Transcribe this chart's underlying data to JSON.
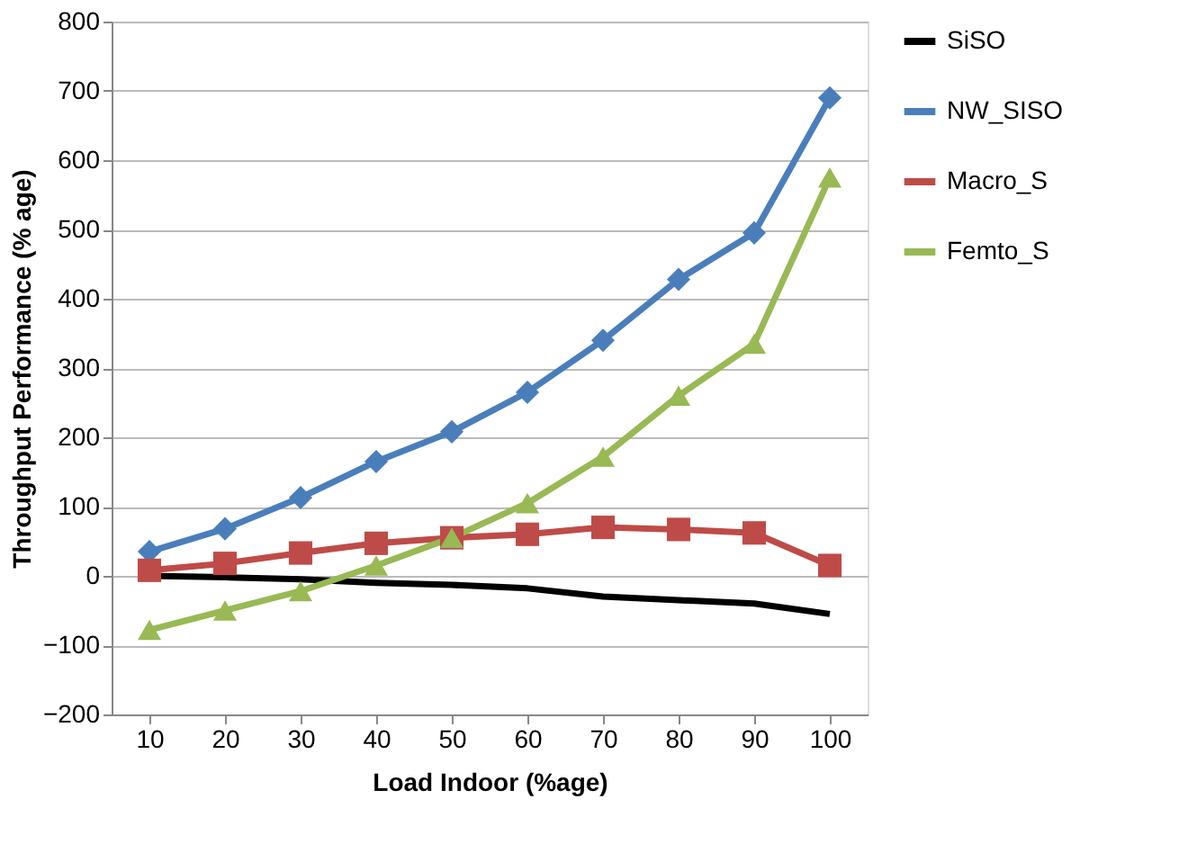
{
  "chart_data": {
    "type": "line",
    "xlabel": "Load Indoor (%age)",
    "ylabel": "Throughput Performance (% age)",
    "categories": [
      "10",
      "20",
      "30",
      "40",
      "50",
      "60",
      "70",
      "80",
      "90",
      "100"
    ],
    "series": [
      {
        "name": "SiSO",
        "color": "#000000",
        "marker": "none",
        "values": [
          0,
          -2,
          -5,
          -10,
          -13,
          -18,
          -30,
          -35,
          -40,
          -55
        ]
      },
      {
        "name": "NW_SISO",
        "color": "#4a7ebb",
        "marker": "diamond",
        "values": [
          35,
          68,
          113,
          165,
          208,
          265,
          340,
          428,
          495,
          690
        ]
      },
      {
        "name": "Macro_S",
        "color": "#be4b48",
        "marker": "square",
        "values": [
          8,
          18,
          33,
          47,
          55,
          60,
          70,
          67,
          62,
          15
        ]
      },
      {
        "name": "Femto_S",
        "color": "#98b954",
        "marker": "triangle",
        "values": [
          -78,
          -50,
          -22,
          15,
          55,
          105,
          172,
          260,
          335,
          575
        ]
      }
    ],
    "ylim": [
      -200,
      800
    ],
    "yticks": [
      -200,
      -100,
      0,
      100,
      200,
      300,
      400,
      500,
      600,
      700,
      800
    ],
    "grid": "y",
    "legend": "right",
    "line_style": "solid"
  }
}
